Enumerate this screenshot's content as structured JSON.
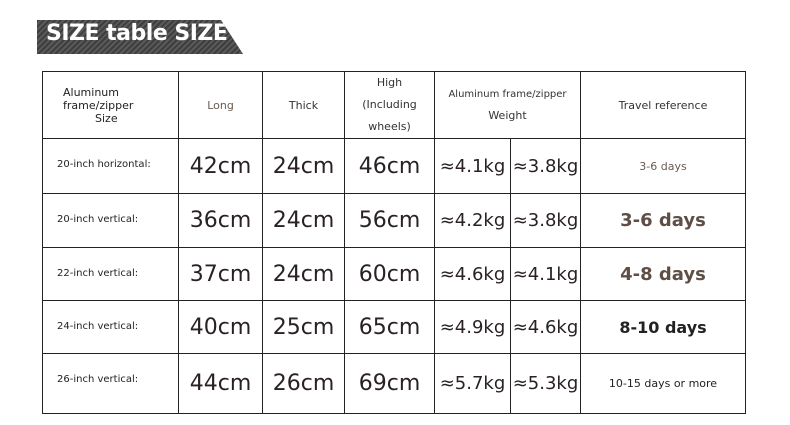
{
  "title": "SIZE table SIZE",
  "headers": {
    "size_line1": "Aluminum",
    "size_line2": "frame/zipper",
    "size_line3": "Size",
    "long": "Long",
    "thick": "Thick",
    "high_line1": "High",
    "high_line2": "(Including wheels)",
    "weight_line1": "Aluminum frame/zipper",
    "weight_line2": "Weight",
    "travel": "Travel reference"
  },
  "rows": [
    {
      "size": "20-inch horizontal:",
      "long": "42cm",
      "thick": "24cm",
      "high": "46cm",
      "w_alu": "≈4.1kg",
      "w_zip": "≈3.8kg",
      "travel": "3-6 days"
    },
    {
      "size": "20-inch vertical:",
      "long": "36cm",
      "thick": "24cm",
      "high": "56cm",
      "w_alu": "≈4.2kg",
      "w_zip": "≈3.8kg",
      "travel": "3-6 days"
    },
    {
      "size": "22-inch vertical:",
      "long": "37cm",
      "thick": "24cm",
      "high": "60cm",
      "w_alu": "≈4.6kg",
      "w_zip": "≈4.1kg",
      "travel": "4-8 days"
    },
    {
      "size": "24-inch vertical:",
      "long": "40cm",
      "thick": "25cm",
      "high": "65cm",
      "w_alu": "≈4.9kg",
      "w_zip": "≈4.6kg",
      "travel": "8-10 days"
    },
    {
      "size": "26-inch vertical:",
      "long": "44cm",
      "thick": "26cm",
      "high": "69cm",
      "w_alu": "≈5.7kg",
      "w_zip": "≈5.3kg",
      "travel": "10-15 days or more"
    }
  ]
}
